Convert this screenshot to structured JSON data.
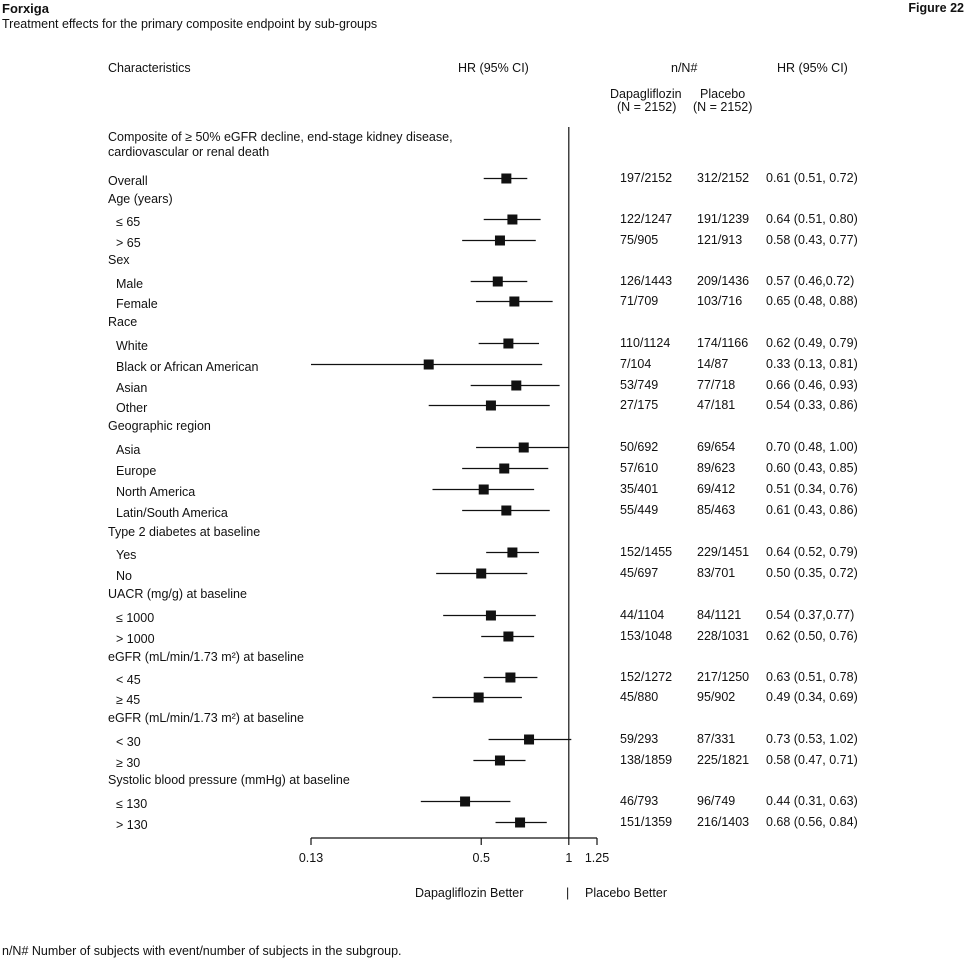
{
  "header": {
    "title": "Forxiga",
    "subtitle": "Treatment effects for the primary composite endpoint by sub-groups",
    "figure_label": "Figure 22"
  },
  "columns": {
    "characteristics": "Characteristics",
    "hr_plot": "HR (95% CI)",
    "nn": "n/N#",
    "dapa": "Dapagliflozin",
    "dapa_n": "(N = 2152)",
    "placebo": "Placebo",
    "placebo_n": "(N = 2152)",
    "hr_text": "HR (95% CI)"
  },
  "endpoint_title_line1": "Composite of ≥ 50% eGFR decline, end-stage kidney disease,",
  "endpoint_title_line2": "cardiovascular or renal death",
  "axis": {
    "ticks": [
      "0.13",
      "0.5",
      "1",
      "1.25"
    ],
    "left_label": "Dapagliflozin Better",
    "separator": "|",
    "right_label": "Placebo Better"
  },
  "footnote": "n/N# Number of subjects with event/number of subjects in the subgroup.",
  "chart_data": {
    "type": "forest",
    "x_scale": "log",
    "xlim": [
      0.13,
      1.25
    ],
    "reference_line": 1,
    "rows": [
      {
        "label": "Overall",
        "indent": false,
        "dapa": "197/2152",
        "placebo": "312/2152",
        "hr_text": "0.61 (0.51, 0.72)",
        "hr": 0.61,
        "lo": 0.51,
        "hi": 0.72
      },
      {
        "label": "Age (years)",
        "header": true
      },
      {
        "label": "≤ 65",
        "indent": true,
        "dapa": "122/1247",
        "placebo": "191/1239",
        "hr_text": "0.64 (0.51, 0.80)",
        "hr": 0.64,
        "lo": 0.51,
        "hi": 0.8
      },
      {
        "label": "> 65",
        "indent": true,
        "dapa": "75/905",
        "placebo": "121/913",
        "hr_text": "0.58 (0.43, 0.77)",
        "hr": 0.58,
        "lo": 0.43,
        "hi": 0.77
      },
      {
        "label": "Sex",
        "header": true
      },
      {
        "label": "Male",
        "indent": true,
        "dapa": "126/1443",
        "placebo": "209/1436",
        "hr_text": "0.57 (0.46,0.72)",
        "hr": 0.57,
        "lo": 0.46,
        "hi": 0.72
      },
      {
        "label": "Female",
        "indent": true,
        "dapa": "71/709",
        "placebo": "103/716",
        "hr_text": "0.65 (0.48, 0.88)",
        "hr": 0.65,
        "lo": 0.48,
        "hi": 0.88
      },
      {
        "label": "Race",
        "header": true
      },
      {
        "label": "White",
        "indent": true,
        "dapa": "110/1124",
        "placebo": "174/1166",
        "hr_text": "0.62 (0.49, 0.79)",
        "hr": 0.62,
        "lo": 0.49,
        "hi": 0.79
      },
      {
        "label": "Black or African American",
        "indent": true,
        "dapa": "7/104",
        "placebo": "14/87",
        "hr_text": "0.33 (0.13, 0.81)",
        "hr": 0.33,
        "lo": 0.13,
        "hi": 0.81
      },
      {
        "label": "Asian",
        "indent": true,
        "dapa": "53/749",
        "placebo": "77/718",
        "hr_text": "0.66 (0.46, 0.93)",
        "hr": 0.66,
        "lo": 0.46,
        "hi": 0.93
      },
      {
        "label": "Other",
        "indent": true,
        "dapa": "27/175",
        "placebo": "47/181",
        "hr_text": "0.54 (0.33, 0.86)",
        "hr": 0.54,
        "lo": 0.33,
        "hi": 0.86
      },
      {
        "label": "Geographic region",
        "header": true
      },
      {
        "label": "Asia",
        "indent": true,
        "dapa": "50/692",
        "placebo": "69/654",
        "hr_text": "0.70 (0.48, 1.00)",
        "hr": 0.7,
        "lo": 0.48,
        "hi": 1.0
      },
      {
        "label": "Europe",
        "indent": true,
        "dapa": "57/610",
        "placebo": "89/623",
        "hr_text": "0.60 (0.43, 0.85)",
        "hr": 0.6,
        "lo": 0.43,
        "hi": 0.85
      },
      {
        "label": "North America",
        "indent": true,
        "dapa": "35/401",
        "placebo": "69/412",
        "hr_text": "0.51 (0.34, 0.76)",
        "hr": 0.51,
        "lo": 0.34,
        "hi": 0.76
      },
      {
        "label": "Latin/South America",
        "indent": true,
        "dapa": "55/449",
        "placebo": "85/463",
        "hr_text": "0.61 (0.43, 0.86)",
        "hr": 0.61,
        "lo": 0.43,
        "hi": 0.86
      },
      {
        "label": "Type 2 diabetes at baseline",
        "header": true
      },
      {
        "label": "Yes",
        "indent": true,
        "dapa": "152/1455",
        "placebo": "229/1451",
        "hr_text": "0.64 (0.52, 0.79)",
        "hr": 0.64,
        "lo": 0.52,
        "hi": 0.79
      },
      {
        "label": "No",
        "indent": true,
        "dapa": "45/697",
        "placebo": "83/701",
        "hr_text": "0.50 (0.35, 0.72)",
        "hr": 0.5,
        "lo": 0.35,
        "hi": 0.72
      },
      {
        "label": "UACR (mg/g) at baseline",
        "header": true
      },
      {
        "label": "≤ 1000",
        "indent": true,
        "dapa": "44/1104",
        "placebo": "84/1121",
        "hr_text": "0.54 (0.37,0.77)",
        "hr": 0.54,
        "lo": 0.37,
        "hi": 0.77
      },
      {
        "label": "> 1000",
        "indent": true,
        "dapa": "153/1048",
        "placebo": "228/1031",
        "hr_text": "0.62 (0.50, 0.76)",
        "hr": 0.62,
        "lo": 0.5,
        "hi": 0.76
      },
      {
        "label": "eGFR (mL/min/1.73 m²) at baseline",
        "header": true
      },
      {
        "label": "< 45",
        "indent": true,
        "dapa": "152/1272",
        "placebo": "217/1250",
        "hr_text": "0.63 (0.51, 0.78)",
        "hr": 0.63,
        "lo": 0.51,
        "hi": 0.78
      },
      {
        "label": "≥ 45",
        "indent": true,
        "dapa": "45/880",
        "placebo": "95/902",
        "hr_text": "0.49 (0.34, 0.69)",
        "hr": 0.49,
        "lo": 0.34,
        "hi": 0.69
      },
      {
        "label": "eGFR (mL/min/1.73 m²) at baseline",
        "header": true
      },
      {
        "label": "< 30",
        "indent": true,
        "dapa": "59/293",
        "placebo": "87/331",
        "hr_text": "0.73 (0.53, 1.02)",
        "hr": 0.73,
        "lo": 0.53,
        "hi": 1.02
      },
      {
        "label": "≥ 30",
        "indent": true,
        "dapa": "138/1859",
        "placebo": "225/1821",
        "hr_text": "0.58 (0.47, 0.71)",
        "hr": 0.58,
        "lo": 0.47,
        "hi": 0.71
      },
      {
        "label": "Systolic blood pressure (mmHg) at baseline",
        "header": true
      },
      {
        "label": "≤ 130",
        "indent": true,
        "dapa": "46/793",
        "placebo": "96/749",
        "hr_text": "0.44 (0.31, 0.63)",
        "hr": 0.44,
        "lo": 0.31,
        "hi": 0.63
      },
      {
        "label": "> 130",
        "indent": true,
        "dapa": "151/1359",
        "placebo": "216/1403",
        "hr_text": "0.68 (0.56, 0.84)",
        "hr": 0.68,
        "lo": 0.56,
        "hi": 0.84
      }
    ]
  }
}
